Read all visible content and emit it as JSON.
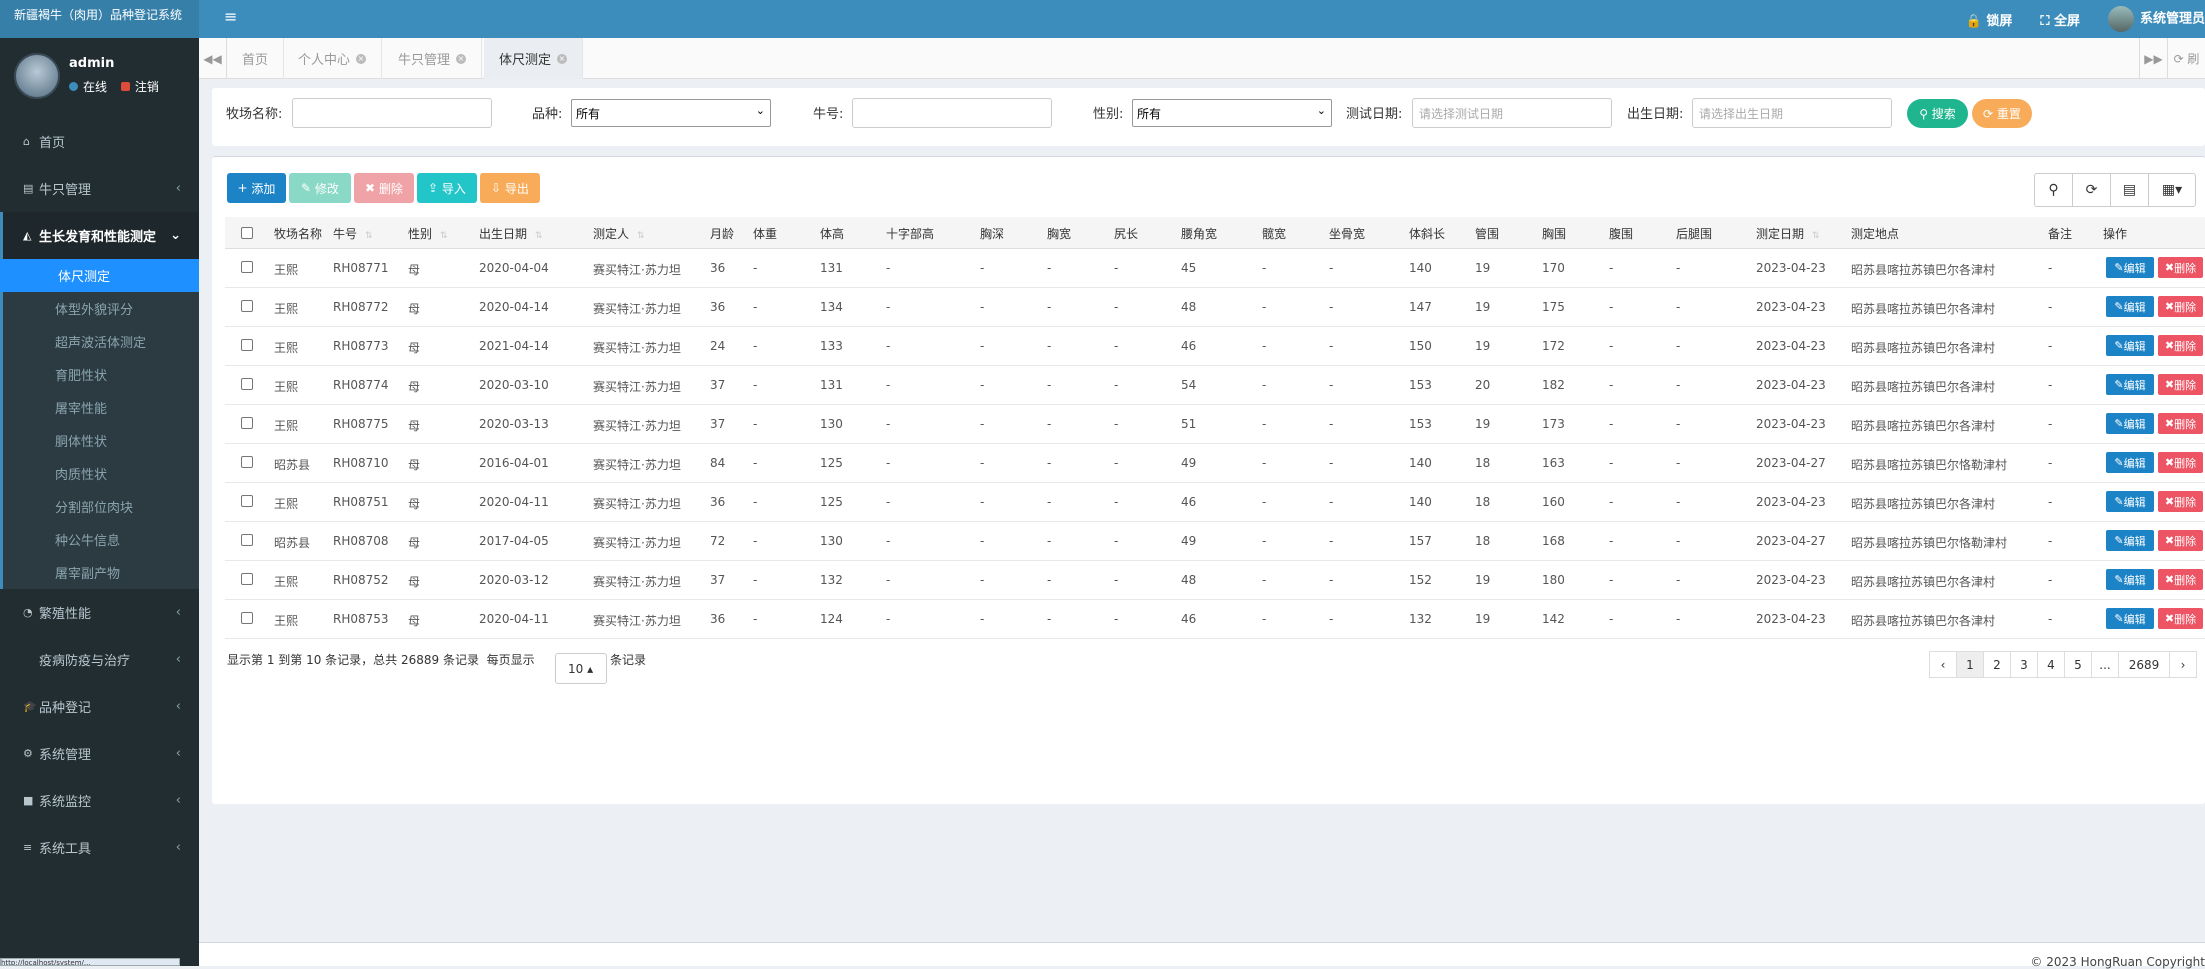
{
  "app": {
    "title": "新疆褐牛（肉用）品种登记系统",
    "menu_toggle": "≡"
  },
  "topbar": {
    "lock": "锁屏",
    "fullscreen": "全屏",
    "admin": "系统管理员"
  },
  "user": {
    "name": "admin",
    "online": "在线",
    "logout": "注销"
  },
  "menu": [
    {
      "label": "首页",
      "icon": "home-icon",
      "glyph": "⌂"
    },
    {
      "label": "牛只管理",
      "icon": "map-icon",
      "glyph": "▤",
      "chevron": "‹"
    },
    {
      "label": "生长发育和性能测定",
      "icon": "area-chart-icon",
      "glyph": "◭",
      "chevron": "⌄"
    },
    {
      "label": "繁殖性能",
      "icon": "flask-icon",
      "glyph": "◔",
      "chevron": "‹"
    },
    {
      "label": "疫病防疫与治疗",
      "icon": "medical-icon",
      "glyph": "",
      "chevron": "‹"
    },
    {
      "label": "品种登记",
      "icon": "graduation-cap-icon",
      "glyph": "🎓",
      "chevron": "‹"
    },
    {
      "label": "系统管理",
      "icon": "gear-icon",
      "glyph": "⚙",
      "chevron": "‹"
    },
    {
      "label": "系统监控",
      "icon": "video-camera-icon",
      "glyph": "■",
      "chevron": "‹"
    },
    {
      "label": "系统工具",
      "icon": "bars-icon",
      "glyph": "≡",
      "chevron": "‹"
    }
  ],
  "submenu": [
    "体尺测定",
    "体型外貌评分",
    "超声波活体测定",
    "育肥性状",
    "屠宰性能",
    "胴体性状",
    "肉质性状",
    "分割部位肉块",
    "种公牛信息",
    "屠宰副产物"
  ],
  "tabs": [
    {
      "label": "首页"
    },
    {
      "label": "个人中心",
      "close": "×"
    },
    {
      "label": "牛只管理",
      "close": "×"
    },
    {
      "label": "体尺测定",
      "close": "×"
    }
  ],
  "tabnav": {
    "prev": "◀◀",
    "next": "▶▶",
    "refresh": "⟳ 刷"
  },
  "filter": {
    "farm_label": "牧场名称:",
    "breed_label": "品种:",
    "breed_value": "所有",
    "cattle_label": "牛号:",
    "sex_label": "性别:",
    "sex_value": "所有",
    "testdate_label": "测试日期:",
    "testdate_placeholder": "请选择测试日期",
    "birth_label": "出生日期:",
    "birth_placeholder": "请选择出生日期",
    "search": "搜索",
    "reset": "重置"
  },
  "toolbar": {
    "add": "添加",
    "edit": "修改",
    "delete": "删除",
    "import": "导入",
    "export": "导出"
  },
  "columns": [
    "牧场名称",
    "牛号",
    "性别",
    "出生日期",
    "测定人",
    "月龄",
    "体重",
    "体高",
    "十字部高",
    "胸深",
    "胸宽",
    "尻长",
    "腰角宽",
    "髋宽",
    "坐骨宽",
    "体斜长",
    "管围",
    "胸围",
    "腹围",
    "后腿围",
    "测定日期",
    "测定地点",
    "备注",
    "操作"
  ],
  "rows": [
    [
      "王熙",
      "RH08771",
      "母",
      "2020-04-04",
      "赛买特江·苏力坦",
      "36",
      "-",
      "131",
      "-",
      "-",
      "-",
      "-",
      "45",
      "-",
      "-",
      "140",
      "19",
      "170",
      "-",
      "-",
      "2023-04-23",
      "昭苏县喀拉苏镇巴尔各津村",
      "-"
    ],
    [
      "王熙",
      "RH08772",
      "母",
      "2020-04-14",
      "赛买特江·苏力坦",
      "36",
      "-",
      "134",
      "-",
      "-",
      "-",
      "-",
      "48",
      "-",
      "-",
      "147",
      "19",
      "175",
      "-",
      "-",
      "2023-04-23",
      "昭苏县喀拉苏镇巴尔各津村",
      "-"
    ],
    [
      "王熙",
      "RH08773",
      "母",
      "2021-04-14",
      "赛买特江·苏力坦",
      "24",
      "-",
      "133",
      "-",
      "-",
      "-",
      "-",
      "46",
      "-",
      "-",
      "150",
      "19",
      "172",
      "-",
      "-",
      "2023-04-23",
      "昭苏县喀拉苏镇巴尔各津村",
      "-"
    ],
    [
      "王熙",
      "RH08774",
      "母",
      "2020-03-10",
      "赛买特江·苏力坦",
      "37",
      "-",
      "131",
      "-",
      "-",
      "-",
      "-",
      "54",
      "-",
      "-",
      "153",
      "20",
      "182",
      "-",
      "-",
      "2023-04-23",
      "昭苏县喀拉苏镇巴尔各津村",
      "-"
    ],
    [
      "王熙",
      "RH08775",
      "母",
      "2020-03-13",
      "赛买特江·苏力坦",
      "37",
      "-",
      "130",
      "-",
      "-",
      "-",
      "-",
      "51",
      "-",
      "-",
      "153",
      "19",
      "173",
      "-",
      "-",
      "2023-04-23",
      "昭苏县喀拉苏镇巴尔各津村",
      "-"
    ],
    [
      "昭苏县",
      "RH08710",
      "母",
      "2016-04-01",
      "赛买特江·苏力坦",
      "84",
      "-",
      "125",
      "-",
      "-",
      "-",
      "-",
      "49",
      "-",
      "-",
      "140",
      "18",
      "163",
      "-",
      "-",
      "2023-04-27",
      "昭苏县喀拉苏镇巴尔恪勒津村",
      "-"
    ],
    [
      "王熙",
      "RH08751",
      "母",
      "2020-04-11",
      "赛买特江·苏力坦",
      "36",
      "-",
      "125",
      "-",
      "-",
      "-",
      "-",
      "46",
      "-",
      "-",
      "140",
      "18",
      "160",
      "-",
      "-",
      "2023-04-23",
      "昭苏县喀拉苏镇巴尔各津村",
      "-"
    ],
    [
      "昭苏县",
      "RH08708",
      "母",
      "2017-04-05",
      "赛买特江·苏力坦",
      "72",
      "-",
      "130",
      "-",
      "-",
      "-",
      "-",
      "49",
      "-",
      "-",
      "157",
      "18",
      "168",
      "-",
      "-",
      "2023-04-27",
      "昭苏县喀拉苏镇巴尔恪勒津村",
      "-"
    ],
    [
      "王熙",
      "RH08752",
      "母",
      "2020-03-12",
      "赛买特江·苏力坦",
      "37",
      "-",
      "132",
      "-",
      "-",
      "-",
      "-",
      "48",
      "-",
      "-",
      "152",
      "19",
      "180",
      "-",
      "-",
      "2023-04-23",
      "昭苏县喀拉苏镇巴尔各津村",
      "-"
    ],
    [
      "王熙",
      "RH08753",
      "母",
      "2020-04-11",
      "赛买特江·苏力坦",
      "36",
      "-",
      "124",
      "-",
      "-",
      "-",
      "-",
      "46",
      "-",
      "-",
      "132",
      "19",
      "142",
      "-",
      "-",
      "2023-04-23",
      "昭苏县喀拉苏镇巴尔各津村",
      "-"
    ]
  ],
  "row_actions": {
    "edit": "编辑",
    "delete": "删除"
  },
  "pagination": {
    "info": "显示第 1 到第 10 条记录，总共 26889 条记录",
    "per_page_prefix": "每页显示",
    "per_page": "10 ▴",
    "per_page_suffix": "条记录",
    "pages": [
      "‹",
      "1",
      "2",
      "3",
      "4",
      "5",
      "...",
      "2689",
      "›"
    ]
  },
  "footer": {
    "copyright": "© 2023 HongRuan Copyright"
  },
  "status_url": "http://localhost/system/..."
}
